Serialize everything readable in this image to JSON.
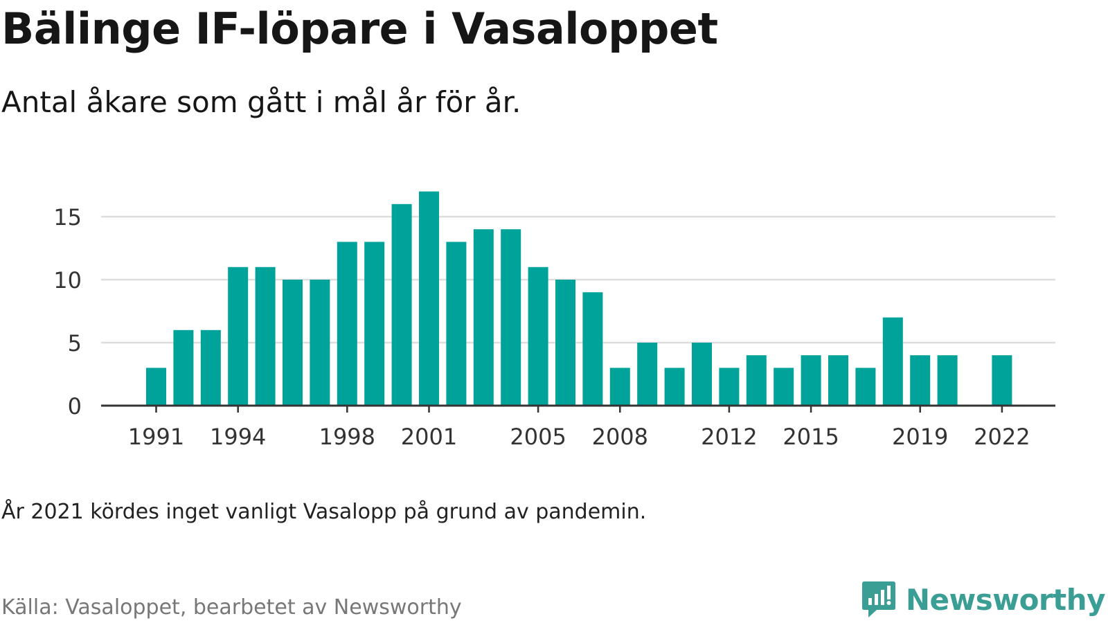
{
  "title": "Bälinge IF-löpare i Vasaloppet",
  "subtitle": "Antal åkare som gått i mål år för år.",
  "note": "År 2021 kördes inget vanligt Vasalopp på grund av pandemin.",
  "source": "Källa: Vasaloppet, bearbetet av Newsworthy",
  "brand": {
    "name": "Newsworthy",
    "icon": "newsworthy-logo-icon",
    "color": "#3a9e95"
  },
  "chart_data": {
    "type": "bar",
    "title": "Bälinge IF-löpare i Vasaloppet",
    "xlabel": "",
    "ylabel": "",
    "ylim": [
      0,
      17
    ],
    "yticks": [
      0,
      5,
      10,
      15
    ],
    "xtick_labels": [
      "1991",
      "1994",
      "1998",
      "2001",
      "2005",
      "2008",
      "2012",
      "2015",
      "2019",
      "2022"
    ],
    "grid": true,
    "bar_color": "#00a39a",
    "categories": [
      "1991",
      "1992",
      "1993",
      "1994",
      "1995",
      "1996",
      "1997",
      "1998",
      "1999",
      "2000",
      "2001",
      "2002",
      "2003",
      "2004",
      "2005",
      "2006",
      "2007",
      "2008",
      "2009",
      "2010",
      "2011",
      "2012",
      "2013",
      "2014",
      "2015",
      "2016",
      "2017",
      "2018",
      "2019",
      "2020",
      "2021",
      "2022"
    ],
    "values": [
      3,
      6,
      6,
      11,
      11,
      10,
      10,
      13,
      13,
      16,
      17,
      13,
      14,
      14,
      11,
      10,
      9,
      3,
      5,
      3,
      5,
      3,
      4,
      3,
      4,
      4,
      3,
      7,
      4,
      4,
      null,
      4
    ]
  }
}
